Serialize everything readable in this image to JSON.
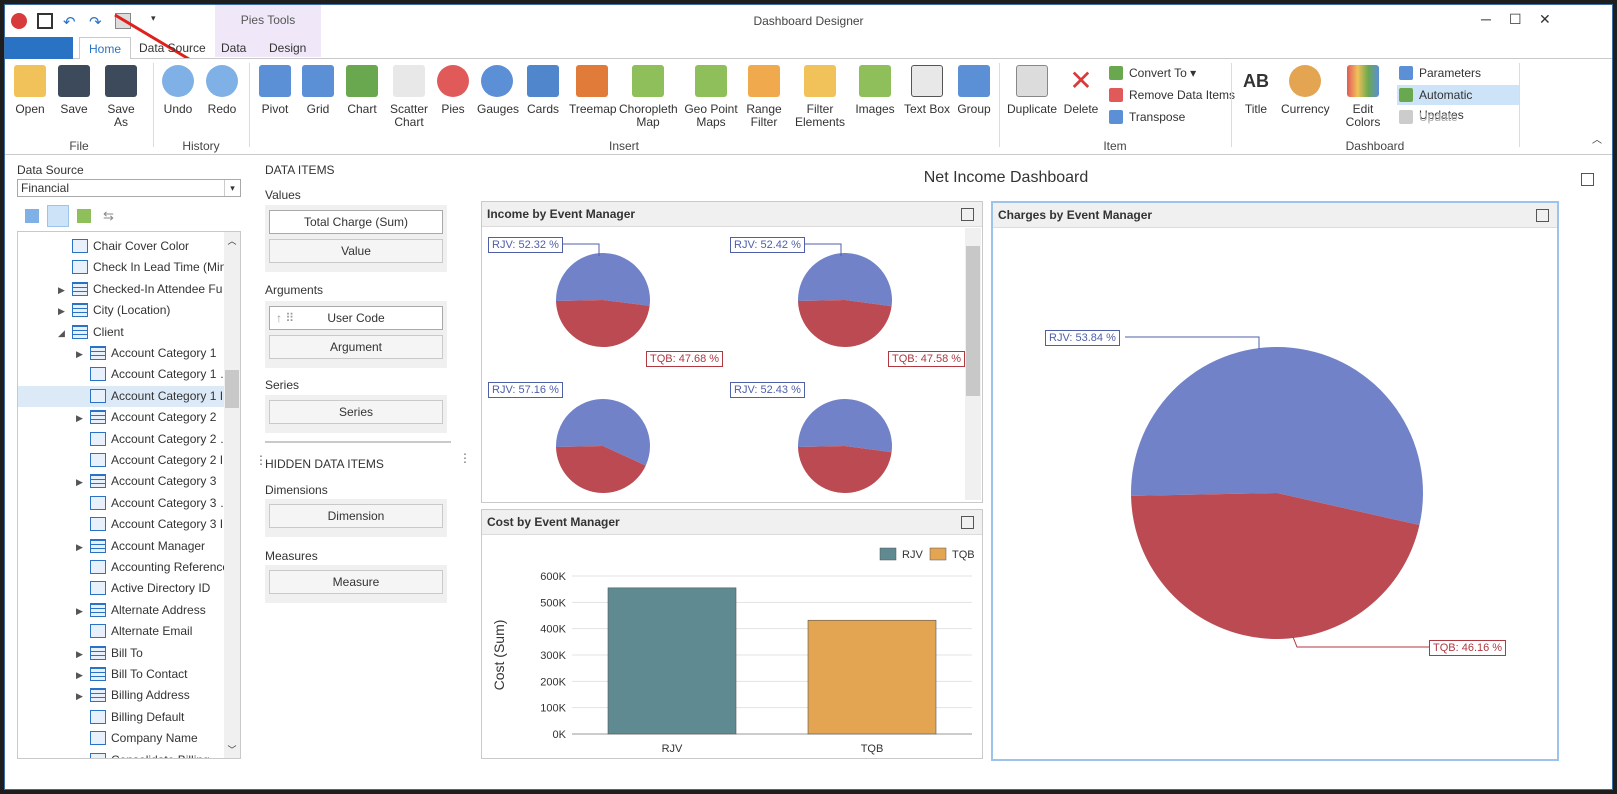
{
  "window": {
    "title": "Dashboard Designer",
    "context_tab": "Pies Tools",
    "controls": [
      "─",
      "☐",
      "✕"
    ]
  },
  "tabs": [
    {
      "label": "Home"
    },
    {
      "label": "Data Source"
    },
    {
      "label": "Data"
    },
    {
      "label": "Design"
    }
  ],
  "ribbon": {
    "file": {
      "label": "File",
      "open": "Open",
      "save": "Save",
      "save_as": "Save As"
    },
    "history": {
      "label": "History",
      "undo": "Undo",
      "redo": "Redo"
    },
    "insert": {
      "label": "Insert",
      "pivot": "Pivot",
      "grid": "Grid",
      "chart": "Chart",
      "scatter1": "Scatter",
      "scatter2": "Chart",
      "pies": "Pies",
      "gauges": "Gauges",
      "cards": "Cards",
      "treemap": "Treemap",
      "choro1": "Choropleth",
      "choro2": "Map",
      "geo1": "Geo Point",
      "geo2": "Maps",
      "range1": "Range",
      "range2": "Filter",
      "filter1": "Filter",
      "filter2": "Elements",
      "images": "Images",
      "textbox": "Text Box",
      "group": "Group"
    },
    "item": {
      "label": "Item",
      "duplicate": "Duplicate",
      "delete": "Delete",
      "convert_to": "Convert To",
      "remove_data_items": "Remove Data Items",
      "transpose": "Transpose"
    },
    "dashboard": {
      "label": "Dashboard",
      "title": "Title",
      "currency": "Currency",
      "edit_colors": "Edit Colors",
      "parameters": "Parameters",
      "automatic_updates": "Automatic Updates",
      "update": "Update"
    }
  },
  "colors": {
    "accent": "#2a72c4",
    "rjv_pie": "#7182c8",
    "tqb_pie": "#bb4a52",
    "rjv_bar": "#5f8a92",
    "tqb_bar": "#e3a551"
  },
  "data_source": {
    "label": "Data Source",
    "value": "Financial"
  },
  "tree": [
    {
      "label": "Chair Cover Color",
      "type": "ab",
      "level": 2,
      "exp": ""
    },
    {
      "label": "Check In Lead Time (Minu…",
      "type": "123",
      "level": 2,
      "exp": ""
    },
    {
      "label": "Checked-In Attendee Fu…",
      "type": "table",
      "level": 2,
      "exp": "▶"
    },
    {
      "label": "City (Location)",
      "type": "table",
      "level": 2,
      "exp": "▶"
    },
    {
      "label": "Client",
      "type": "table",
      "level": 2,
      "exp": "◢"
    },
    {
      "label": "Account Category 1",
      "type": "table",
      "level": 3,
      "exp": "▶"
    },
    {
      "label": "Account Category 1 …",
      "type": "ab",
      "level": 3,
      "exp": ""
    },
    {
      "label": "Account Category 1 I…",
      "type": "ab",
      "level": 3,
      "exp": "",
      "sel": true
    },
    {
      "label": "Account Category 2",
      "type": "table",
      "level": 3,
      "exp": "▶"
    },
    {
      "label": "Account Category 2 …",
      "type": "ab",
      "level": 3,
      "exp": ""
    },
    {
      "label": "Account Category 2 I…",
      "type": "ab",
      "level": 3,
      "exp": ""
    },
    {
      "label": "Account Category 3",
      "type": "table",
      "level": 3,
      "exp": "▶"
    },
    {
      "label": "Account Category 3 …",
      "type": "ab",
      "level": 3,
      "exp": ""
    },
    {
      "label": "Account Category 3 I…",
      "type": "ab",
      "level": 3,
      "exp": ""
    },
    {
      "label": "Account Manager",
      "type": "table",
      "level": 3,
      "exp": "▶"
    },
    {
      "label": "Accounting Reference",
      "type": "ab",
      "level": 3,
      "exp": ""
    },
    {
      "label": "Active Directory ID",
      "type": "ab",
      "level": 3,
      "exp": ""
    },
    {
      "label": "Alternate Address",
      "type": "table",
      "level": 3,
      "exp": "▶"
    },
    {
      "label": "Alternate Email",
      "type": "ab",
      "level": 3,
      "exp": ""
    },
    {
      "label": "Bill To",
      "type": "table",
      "level": 3,
      "exp": "▶"
    },
    {
      "label": "Bill To Contact",
      "type": "table",
      "level": 3,
      "exp": "▶"
    },
    {
      "label": "Billing Address",
      "type": "table",
      "level": 3,
      "exp": "▶"
    },
    {
      "label": "Billing Default",
      "type": "ab",
      "level": 3,
      "exp": ""
    },
    {
      "label": "Company Name",
      "type": "ab",
      "level": 3,
      "exp": ""
    },
    {
      "label": "Consolidate Billing",
      "type": "ab",
      "level": 3,
      "exp": ""
    }
  ],
  "data_items": {
    "header": "DATA ITEMS",
    "values_label": "Values",
    "value1": "Total Charge (Sum)",
    "value2": "Value",
    "arguments_label": "Arguments",
    "arg1": "User Code",
    "arg2": "Argument",
    "series_label": "Series",
    "series1": "Series",
    "hidden_header": "HIDDEN DATA ITEMS",
    "dimensions_label": "Dimensions",
    "dim1": "Dimension",
    "measures_label": "Measures",
    "meas1": "Measure"
  },
  "dashboard": {
    "title": "Net Income Dashboard"
  },
  "income": {
    "title": "Income by Event Manager",
    "pies": [
      {
        "rjv": "RJV: 52.32 %",
        "tqb": "TQB: 47.68 %",
        "rjv_pct": 52.32
      },
      {
        "rjv": "RJV: 52.42 %",
        "tqb": "TQB: 47.58 %",
        "rjv_pct": 52.42
      },
      {
        "rjv": "RJV: 57.16 %",
        "tqb": "",
        "rjv_pct": 57.16
      },
      {
        "rjv": "RJV: 52.43 %",
        "tqb": "",
        "rjv_pct": 52.43
      }
    ]
  },
  "charges": {
    "title": "Charges by Event Manager",
    "rjv": "RJV: 53.84 %",
    "tqb": "TQB: 46.16 %",
    "rjv_pct": 53.84
  },
  "chart_data": {
    "type": "bar",
    "title": "Cost by Event Manager",
    "categories": [
      "RJV",
      "TQB"
    ],
    "values": [
      555000,
      432000
    ],
    "ylabel": "Cost (Sum)",
    "xlabel": "",
    "ylim": [
      0,
      600000
    ],
    "yticks": [
      "0K",
      "100K",
      "200K",
      "300K",
      "400K",
      "500K",
      "600K"
    ],
    "legend": [
      "RJV",
      "TQB"
    ],
    "grid": true,
    "legend_position": "top-right"
  }
}
